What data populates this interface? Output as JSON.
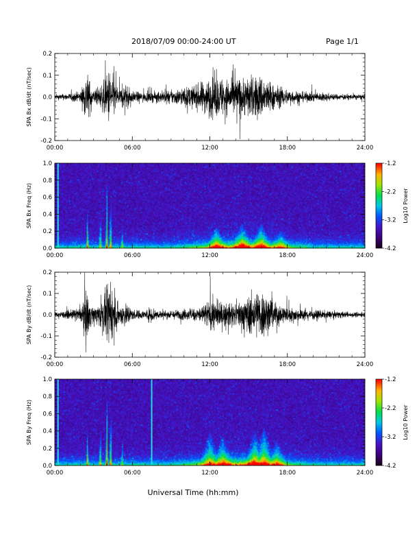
{
  "header": {
    "title": "2018/07/09   00:00-24:00 UT",
    "page": "Page 1/1"
  },
  "footer": {
    "xlabel": "Universal Time (hh:mm)"
  },
  "chart_data": [
    {
      "type": "line",
      "ylabel": "SPA Bx dB/dt (nT/sec)",
      "xlim": [
        "00:00",
        "24:00"
      ],
      "ylim": [
        -0.2,
        0.2
      ],
      "yticks": [
        "0.2",
        "0.1",
        "0.0",
        "-0.1",
        "-0.2"
      ],
      "xticks": [
        "00:00",
        "06:00",
        "12:00",
        "18:00",
        "24:00"
      ],
      "series": [
        {
          "color": "#000000",
          "x_hours": [
            0,
            1,
            2,
            2.5,
            2.6,
            3,
            3.5,
            4,
            4.2,
            4.3,
            5,
            5.5,
            6,
            7,
            8,
            9,
            10,
            11,
            11.5,
            12,
            12.5,
            13,
            13.5,
            14,
            14.5,
            15,
            15.5,
            16,
            16.5,
            17,
            18,
            19,
            20,
            21,
            22,
            23,
            24
          ],
          "amplitude": [
            0.02,
            0.025,
            0.04,
            0.2,
            0.15,
            0.05,
            0.08,
            0.15,
            0.22,
            0.2,
            0.06,
            0.1,
            0.04,
            0.035,
            0.04,
            0.05,
            0.07,
            0.09,
            0.12,
            0.14,
            0.15,
            0.14,
            0.13,
            0.15,
            0.14,
            0.16,
            0.15,
            0.17,
            0.12,
            0.09,
            0.06,
            0.04,
            0.035,
            0.03,
            0.02,
            0.02,
            0.02
          ]
        }
      ],
      "grid": false
    },
    {
      "type": "heatmap",
      "ylabel": "SPA Bx Freq (Hz)",
      "xlim": [
        "00:00",
        "24:00"
      ],
      "ylim": [
        0.0,
        1.0
      ],
      "yticks": [
        "1.0",
        "0.8",
        "0.6",
        "0.4",
        "0.2",
        "0.0"
      ],
      "xticks": [
        "00:00",
        "06:00",
        "12:00",
        "18:00",
        "24:00"
      ],
      "colorbar": {
        "label": "Log10 Power",
        "ticks": [
          "-1.2",
          "-2.2",
          "-3.2",
          "-4.2"
        ],
        "range": [
          -4.2,
          -1.2
        ]
      },
      "vertical_lines_hours": [
        0.25
      ],
      "activity_hours": [
        {
          "x": 2.5,
          "level": 0.8,
          "height": 0.45
        },
        {
          "x": 3.5,
          "level": 0.65,
          "height": 0.5
        },
        {
          "x": 4.0,
          "level": 0.9,
          "height": 0.85
        },
        {
          "x": 4.3,
          "level": 0.85,
          "height": 0.7
        },
        {
          "x": 5.2,
          "level": 0.5,
          "height": 0.3
        },
        {
          "x": 12.5,
          "level": 0.65,
          "height": 0.25
        },
        {
          "x": 14.5,
          "level": 0.6,
          "height": 0.3
        },
        {
          "x": 16.0,
          "level": 0.65,
          "height": 0.3
        },
        {
          "x": 17.5,
          "level": 0.5,
          "height": 0.2
        }
      ]
    },
    {
      "type": "line",
      "ylabel": "SPA By dB/dt (nT/sec)",
      "xlim": [
        "00:00",
        "24:00"
      ],
      "ylim": [
        -0.2,
        0.2
      ],
      "yticks": [
        "0.2",
        "0.1",
        "0.0",
        "-0.1",
        "-0.2"
      ],
      "xticks": [
        "00:00",
        "06:00",
        "12:00",
        "18:00",
        "24:00"
      ],
      "series": [
        {
          "color": "#000000",
          "x_hours": [
            0,
            1,
            2,
            2.5,
            2.6,
            3,
            3.5,
            4,
            4.2,
            4.3,
            5,
            5.5,
            6,
            7,
            7.5,
            8,
            9,
            10,
            11,
            11.5,
            12,
            12.5,
            13,
            13.5,
            14,
            14.5,
            15,
            15.5,
            16,
            16.5,
            17,
            18,
            19,
            20,
            21,
            22,
            23,
            24
          ],
          "amplitude": [
            0.02,
            0.03,
            0.05,
            0.2,
            0.14,
            0.05,
            0.1,
            0.18,
            0.22,
            0.2,
            0.07,
            0.1,
            0.04,
            0.03,
            0.07,
            0.03,
            0.035,
            0.04,
            0.05,
            0.08,
            0.12,
            0.11,
            0.09,
            0.08,
            0.09,
            0.12,
            0.14,
            0.17,
            0.2,
            0.14,
            0.1,
            0.06,
            0.045,
            0.035,
            0.03,
            0.025,
            0.02,
            0.02
          ]
        }
      ],
      "grid": false
    },
    {
      "type": "heatmap",
      "ylabel": "SPA By Freq (Hz)",
      "xlim": [
        "00:00",
        "24:00"
      ],
      "ylim": [
        0.0,
        1.0
      ],
      "yticks": [
        "1.0",
        "0.8",
        "0.6",
        "0.4",
        "0.2",
        "0.0"
      ],
      "xticks": [
        "00:00",
        "06:00",
        "12:00",
        "18:00",
        "24:00"
      ],
      "colorbar": {
        "label": "Log10 Power",
        "ticks": [
          "-1.2",
          "-2.2",
          "-3.2",
          "-4.2"
        ],
        "range": [
          -4.2,
          -1.2
        ]
      },
      "vertical_lines_hours": [
        0.25,
        7.5
      ],
      "activity_hours": [
        {
          "x": 2.5,
          "level": 0.8,
          "height": 0.4
        },
        {
          "x": 3.5,
          "level": 0.7,
          "height": 0.55
        },
        {
          "x": 4.0,
          "level": 0.95,
          "height": 0.85
        },
        {
          "x": 4.3,
          "level": 0.85,
          "height": 0.75
        },
        {
          "x": 5.2,
          "level": 0.45,
          "height": 0.35
        },
        {
          "x": 12.0,
          "level": 0.6,
          "height": 0.4
        },
        {
          "x": 13.0,
          "level": 0.6,
          "height": 0.35
        },
        {
          "x": 15.5,
          "level": 0.65,
          "height": 0.4
        },
        {
          "x": 16.2,
          "level": 0.7,
          "height": 0.45
        },
        {
          "x": 17.2,
          "level": 0.55,
          "height": 0.3
        }
      ]
    }
  ]
}
